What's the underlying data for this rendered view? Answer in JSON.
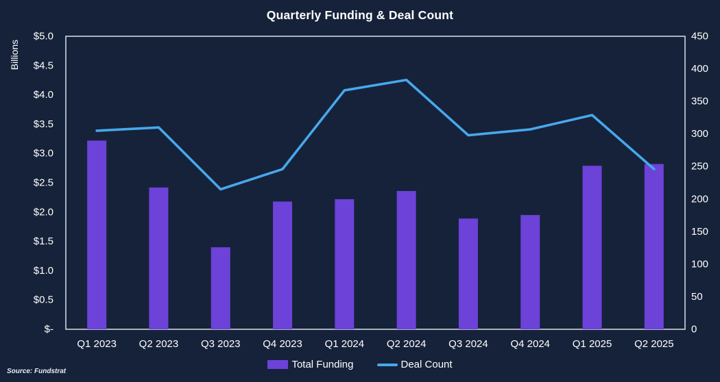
{
  "title": "Quarterly Funding & Deal Count",
  "source_note": "Source: Fundstrat",
  "colors": {
    "background": "#16223A",
    "bar": "#6C42D8",
    "line": "#47A8EC",
    "text": "#FFFFFF",
    "axis_border": "#DCE1E9"
  },
  "chart_data": {
    "type": "bar+line combo",
    "title": "Quarterly Funding & Deal Count",
    "grid": false,
    "legend_position": "bottom-center",
    "categories": [
      "Q1 2023",
      "Q2 2023",
      "Q3 2023",
      "Q4 2023",
      "Q1 2024",
      "Q2 2024",
      "Q3 2024",
      "Q4 2024",
      "Q1 2025",
      "Q2 2025"
    ],
    "series": [
      {
        "name": "Total Funding",
        "type": "bar",
        "axis": "left",
        "unit": "USD billions",
        "values": [
          3.22,
          2.42,
          1.4,
          2.18,
          2.22,
          2.36,
          1.89,
          1.95,
          2.79,
          2.82
        ]
      },
      {
        "name": "Deal Count",
        "type": "line",
        "axis": "right",
        "unit": "deals",
        "values": [
          305,
          310,
          215,
          246,
          367,
          383,
          298,
          307,
          329,
          246
        ]
      }
    ],
    "left_axis": {
      "label": "Billions",
      "min": 0,
      "max": 5,
      "ticks": [
        "$5.0",
        "$4.5",
        "$4.0",
        "$3.5",
        "$3.0",
        "$2.5",
        "$2.0",
        "$1.5",
        "$1.0",
        "$0.5",
        "$-"
      ]
    },
    "right_axis": {
      "label": "",
      "min": 0,
      "max": 450,
      "ticks": [
        "450",
        "400",
        "350",
        "300",
        "250",
        "200",
        "150",
        "100",
        "50",
        "0"
      ]
    },
    "legend": [
      {
        "label": "Total Funding",
        "swatch": "bar"
      },
      {
        "label": "Deal Count",
        "swatch": "line"
      }
    ]
  }
}
